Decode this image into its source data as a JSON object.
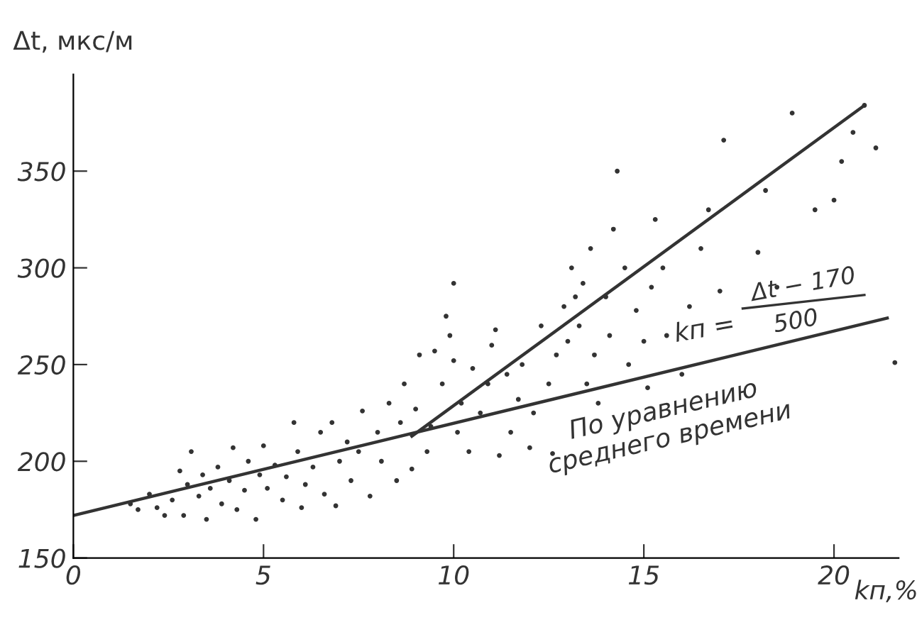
{
  "chart_data": {
    "type": "scatter",
    "ylabel": "Δt, мкс/м",
    "xlabel": "kп,%",
    "annotations": [
      "kп =",
      "Δt − 170",
      "500",
      "По уравнению\nсреднего времени"
    ],
    "xlim": [
      0,
      21.7
    ],
    "ylim": [
      150,
      400
    ],
    "xticks": [
      0,
      5,
      10,
      15,
      20
    ],
    "yticks": [
      150,
      200,
      250,
      300,
      350
    ],
    "grid": false,
    "marker": "circle",
    "series": [
      {
        "color": "#333333",
        "x": [
          1.5,
          1.7,
          2,
          2.2,
          2.4,
          2.6,
          2.8,
          2.9,
          3.0,
          3.1,
          3.3,
          3.4,
          3.5,
          3.6,
          3.8,
          3.9,
          4.1,
          4.2,
          4.3,
          4.5,
          4.6,
          4.8,
          4.9,
          5.0,
          5.1,
          5.3,
          5.5,
          5.6,
          5.8,
          5.9,
          6.0,
          6.1,
          6.3,
          6.5,
          6.6,
          6.8,
          6.9,
          7.0,
          7.2,
          7.3,
          7.5,
          7.6,
          7.8,
          8.0,
          8.1,
          8.3,
          8.5,
          8.6,
          8.7,
          8.9,
          9.0,
          9.1,
          9.3,
          9.4,
          9.5,
          9.7,
          9.8,
          9.9,
          10.0,
          10.0,
          10.1,
          10.2,
          10.4,
          10.5,
          10.7,
          10.9,
          11.0,
          11.1,
          11.2,
          11.4,
          11.5,
          11.7,
          11.8,
          12.0,
          12.1,
          12.3,
          12.5,
          12.6,
          12.7,
          12.9,
          13.0,
          13.1,
          13.2,
          13.3,
          13.4,
          13.5,
          13.6,
          13.7,
          13.8,
          14.0,
          14.1,
          14.2,
          14.3,
          14.5,
          14.6,
          14.8,
          15.0,
          15.1,
          15.2,
          15.3,
          15.5,
          15.6,
          16.0,
          16.2,
          16.5,
          16.7,
          17.0,
          17.1,
          18.0,
          18.2,
          18.5,
          18.9,
          19.5,
          20.0,
          20.2,
          20.5,
          20.8,
          21.1,
          21.6
        ],
        "values": [
          178,
          175,
          183,
          176,
          172,
          180,
          195,
          172,
          188,
          205,
          182,
          193,
          170,
          186,
          197,
          178,
          190,
          207,
          175,
          185,
          200,
          170,
          193,
          208,
          186,
          198,
          180,
          192,
          220,
          205,
          176,
          188,
          197,
          215,
          183,
          220,
          177,
          200,
          210,
          190,
          205,
          226,
          182,
          215,
          200,
          230,
          190,
          220,
          240,
          196,
          227,
          255,
          205,
          218,
          257,
          240,
          275,
          265,
          292,
          252,
          215,
          230,
          205,
          248,
          225,
          240,
          260,
          268,
          203,
          245,
          215,
          232,
          250,
          207,
          225,
          270,
          240,
          204,
          255,
          280,
          262,
          300,
          285,
          270,
          292,
          240,
          310,
          255,
          230,
          285,
          265,
          320,
          350,
          300,
          250,
          278,
          262,
          238,
          290,
          325,
          300,
          265,
          245,
          280,
          310,
          330,
          288,
          366,
          308,
          340,
          290,
          380,
          330,
          335,
          355,
          370,
          384,
          362,
          251
        ]
      },
      {
        "type": "line",
        "color": "#333333",
        "marker": "none",
        "x": [
          0,
          21.4
        ],
        "values": [
          172,
          274
        ]
      },
      {
        "type": "line",
        "color": "#333333",
        "marker": "none",
        "x": [
          8.9,
          20.8
        ],
        "values": [
          213,
          384
        ]
      }
    ]
  }
}
